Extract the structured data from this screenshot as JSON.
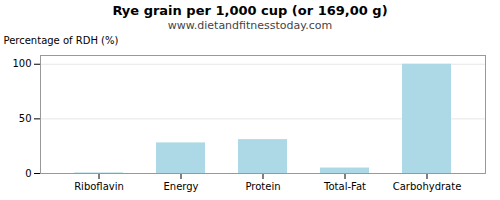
{
  "chart_data": {
    "type": "bar",
    "title": "Rye grain per 1,000 cup (or 169,00 g)",
    "subtitle": "www.dietandfitnesstoday.com",
    "categories": [
      "Riboflavin",
      "Energy",
      "Protein",
      "Total-Fat",
      "Carbohydrate"
    ],
    "values": [
      0.5,
      28,
      31,
      5,
      100
    ],
    "color": "#add8e6",
    "ylabel": "Percentage of RDH (%)",
    "ylim": [
      0,
      108
    ],
    "yticks": [
      0,
      50,
      100
    ],
    "grid": true
  }
}
